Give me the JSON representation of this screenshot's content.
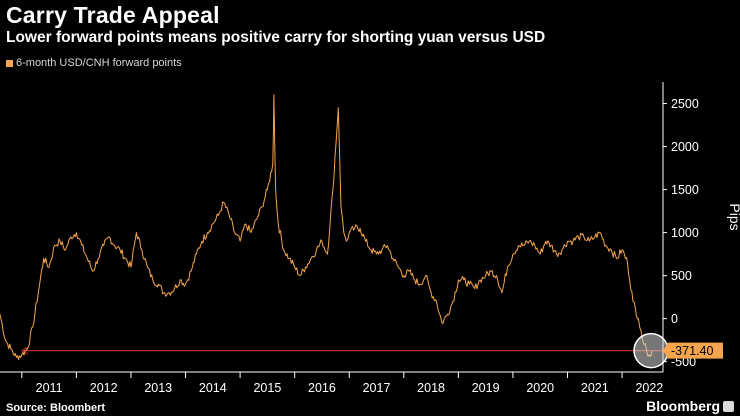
{
  "header": {
    "title": "Carry Trade Appeal",
    "subtitle": "Lower forward points means positive carry for shorting yuan versus USD"
  },
  "footer": {
    "source": "Source: Bloombert",
    "brand": "Bloomberg"
  },
  "colors": {
    "series": "#f6a54e",
    "reference_line": "#b52a2a",
    "background": "#000000",
    "text": "#ffffff"
  },
  "chart_data": {
    "type": "line",
    "title": "Carry Trade Appeal",
    "subtitle": "Lower forward points means positive carry for shorting yuan versus USD",
    "ylabel": "Pips",
    "xlabel": "",
    "ylim": [
      -620,
      2750
    ],
    "xlim": [
      2010.6,
      2022.75
    ],
    "yticks": [
      -500,
      0,
      500,
      1000,
      1500,
      2000,
      2500
    ],
    "xticks": [
      "2011",
      "2012",
      "2013",
      "2014",
      "2015",
      "2016",
      "2017",
      "2018",
      "2019",
      "2020",
      "2021",
      "2022"
    ],
    "grid": false,
    "legend": {
      "position": "top-left"
    },
    "series": [
      {
        "name": "6-month USD/CNH forward points",
        "x": [
          2010.6,
          2010.7,
          2010.8,
          2010.9,
          2011.0,
          2011.1,
          2011.2,
          2011.3,
          2011.4,
          2011.5,
          2011.6,
          2011.7,
          2011.8,
          2011.9,
          2012.0,
          2012.1,
          2012.2,
          2012.3,
          2012.4,
          2012.5,
          2012.6,
          2012.7,
          2012.8,
          2012.9,
          2013.0,
          2013.1,
          2013.2,
          2013.3,
          2013.4,
          2013.5,
          2013.6,
          2013.7,
          2013.8,
          2013.9,
          2014.0,
          2014.1,
          2014.2,
          2014.3,
          2014.4,
          2014.5,
          2014.6,
          2014.7,
          2014.8,
          2014.9,
          2015.0,
          2015.1,
          2015.2,
          2015.3,
          2015.4,
          2015.5,
          2015.6,
          2015.62,
          2015.65,
          2015.7,
          2015.8,
          2015.9,
          2016.0,
          2016.1,
          2016.2,
          2016.3,
          2016.4,
          2016.5,
          2016.6,
          2016.7,
          2016.8,
          2016.85,
          2016.9,
          2016.95,
          2017.0,
          2017.1,
          2017.2,
          2017.3,
          2017.4,
          2017.5,
          2017.6,
          2017.7,
          2017.8,
          2017.9,
          2018.0,
          2018.1,
          2018.2,
          2018.3,
          2018.4,
          2018.5,
          2018.6,
          2018.7,
          2018.8,
          2018.9,
          2019.0,
          2019.1,
          2019.2,
          2019.3,
          2019.4,
          2019.5,
          2019.6,
          2019.7,
          2019.8,
          2019.9,
          2020.0,
          2020.1,
          2020.2,
          2020.3,
          2020.4,
          2020.5,
          2020.6,
          2020.7,
          2020.8,
          2020.9,
          2021.0,
          2021.1,
          2021.2,
          2021.3,
          2021.4,
          2021.5,
          2021.6,
          2021.7,
          2021.8,
          2021.9,
          2022.0,
          2022.1,
          2022.2,
          2022.3,
          2022.35,
          2022.4,
          2022.45,
          2022.5,
          2022.55
        ],
        "values": [
          50,
          -250,
          -350,
          -450,
          -420,
          -350,
          -100,
          300,
          700,
          600,
          850,
          900,
          800,
          950,
          1000,
          850,
          700,
          550,
          700,
          850,
          950,
          850,
          800,
          700,
          600,
          1000,
          800,
          600,
          450,
          400,
          300,
          300,
          350,
          450,
          400,
          550,
          750,
          900,
          1000,
          1100,
          1200,
          1350,
          1200,
          1000,
          900,
          1100,
          1000,
          1150,
          1300,
          1500,
          1800,
          2600,
          1500,
          1100,
          800,
          700,
          600,
          500,
          600,
          700,
          800,
          900,
          750,
          1500,
          2450,
          1300,
          1000,
          900,
          1000,
          1050,
          1050,
          900,
          800,
          750,
          800,
          850,
          700,
          600,
          500,
          550,
          450,
          400,
          500,
          300,
          200,
          -50,
          50,
          200,
          450,
          450,
          400,
          350,
          450,
          500,
          550,
          500,
          300,
          600,
          750,
          850,
          850,
          900,
          850,
          750,
          900,
          850,
          750,
          800,
          900,
          900,
          950,
          950,
          900,
          950,
          1000,
          850,
          800,
          700,
          800,
          650,
          200,
          0,
          -150,
          -300,
          -371.4,
          -420,
          -371.4
        ]
      }
    ],
    "annotations": {
      "last_value_label": "-371.40",
      "last_value": -371.4,
      "reference_level": -371.4,
      "reference_start_year": 2011.0
    }
  }
}
